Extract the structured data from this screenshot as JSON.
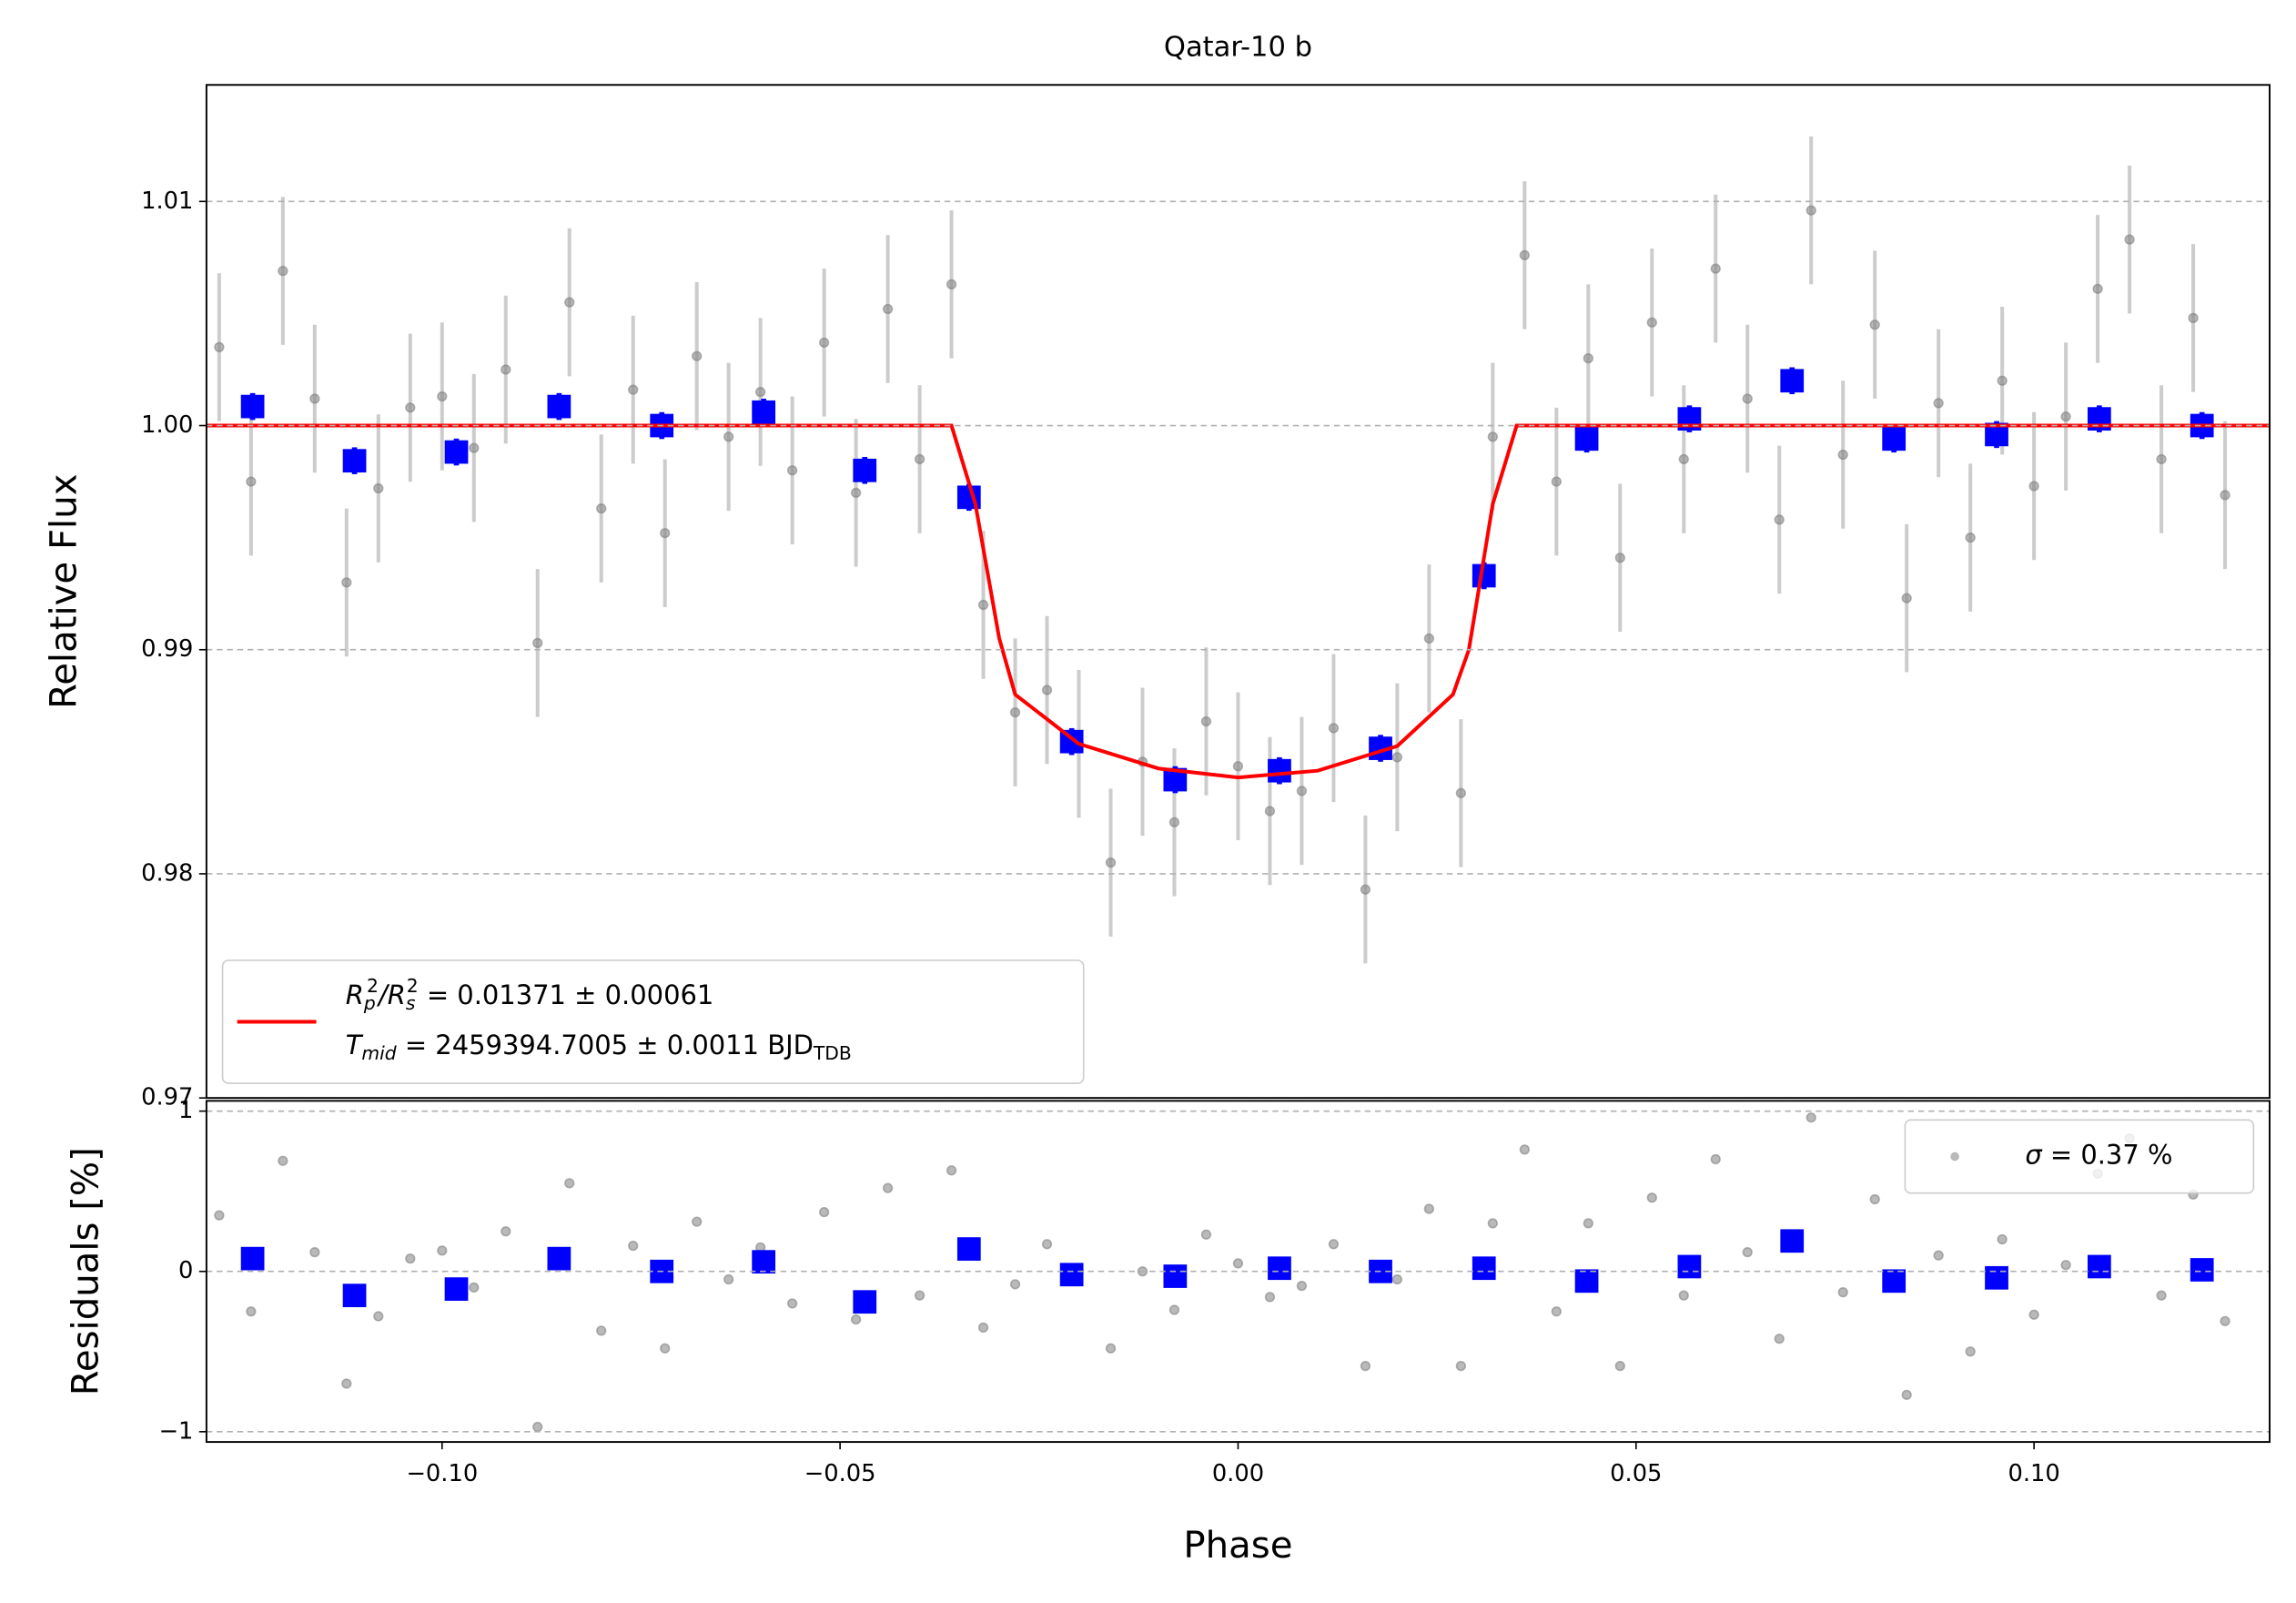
{
  "chart_data": [
    {
      "type": "scatter",
      "title": "Qatar-10 b",
      "ylabel": "Relative Flux",
      "xlim": [
        -0.1296,
        0.1296
      ],
      "ylim": [
        0.97,
        1.0152
      ],
      "yticks": [
        1.01,
        {
          "value": 1,
          "label": "1.00"
        },
        0.99,
        0.98,
        0.97
      ],
      "grid": true,
      "legend": "lower left",
      "series": [
        {
          "mode": "errorbar",
          "marker": "circle",
          "color": "#808080",
          "error_color": "#cccccc",
          "error": 0.0033,
          "x": [
            -0.128,
            -0.124,
            -0.12,
            -0.116,
            -0.112,
            -0.108,
            -0.104,
            -0.1,
            -0.096,
            -0.092,
            -0.088,
            -0.084,
            -0.08,
            -0.076,
            -0.072,
            -0.068,
            -0.064,
            -0.06,
            -0.056,
            -0.052,
            -0.048,
            -0.044,
            -0.04,
            -0.036,
            -0.032,
            -0.028,
            -0.024,
            -0.02,
            -0.016,
            -0.012,
            -0.008,
            -0.004,
            0,
            0.004,
            0.008,
            0.012,
            0.016,
            0.02,
            0.024,
            0.028,
            0.032,
            0.036,
            0.04,
            0.044,
            0.048,
            0.052,
            0.056,
            0.06,
            0.064,
            0.068,
            0.072,
            0.076,
            0.08,
            0.084,
            0.088,
            0.092,
            0.096,
            0.1,
            0.104,
            0.108,
            0.112,
            0.116,
            0.12,
            0.124
          ],
          "values": [
            1.0035,
            0.9975,
            1.0069,
            1.0012,
            0.993,
            0.9972,
            1.0008,
            1.0013,
            0.999,
            1.0025,
            0.9903,
            1.0055,
            0.9963,
            1.0016,
            0.9952,
            1.0031,
            0.9995,
            1.0015,
            0.998,
            1.0037,
            0.997,
            1.0052,
            0.9985,
            1.0063,
            0.992,
            0.9872,
            0.9882,
            0.9858,
            0.9805,
            0.985,
            0.9823,
            0.9868,
            0.9848,
            0.9828,
            0.9837,
            0.9865,
            0.9793,
            0.9852,
            0.9905,
            0.9836,
            0.9995,
            1.0076,
            0.9975,
            1.003,
            0.9941,
            1.0046,
            0.9985,
            1.007,
            1.0012,
            0.9958,
            1.0096,
            0.9987,
            1.0045,
            0.9923,
            1.001,
            0.995,
            1.002,
            0.9973,
            1.0004,
            1.0061,
            1.0083,
            0.9985,
            1.0048,
            0.9969
          ]
        },
        {
          "mode": "errorbar",
          "marker": "square",
          "color": "#0000ff",
          "error_color": "#0000ff",
          "error": 0.0006,
          "x": [
            -0.1238,
            -0.111,
            -0.0982,
            -0.0853,
            -0.0724,
            -0.0596,
            -0.0469,
            -0.0338,
            -0.0209,
            -0.0079,
            0.0052,
            0.0179,
            0.0309,
            0.0438,
            0.0567,
            0.0696,
            0.0824,
            0.0953,
            0.1082,
            0.1211
          ],
          "values": [
            1.00085,
            0.99843,
            0.99882,
            1.00085,
            1.0,
            1.0006,
            0.998,
            0.9968,
            0.9859,
            0.9842,
            0.9846,
            0.9856,
            0.9933,
            0.9994,
            1.0003,
            1.002,
            0.9994,
            0.9996,
            1.0003,
            1.0
          ]
        },
        {
          "mode": "line",
          "color": "#ff0000",
          "name": [
            [
              {
                "text": "R",
                "style": "i"
              },
              {
                "text": "p",
                "style": "sub"
              },
              {
                "text": "2",
                "style": "sup"
              },
              {
                "text": "/",
                "style": "i"
              },
              {
                "text": "R",
                "style": "i"
              },
              {
                "text": "s",
                "style": "sub"
              },
              {
                "text": "2",
                "style": "sup"
              },
              {
                "text": " = 0.01371 ± 0.00061",
                "style": "n"
              }
            ],
            [
              {
                "text": "T",
                "style": "i"
              },
              {
                "text": "mid",
                "style": "sub"
              },
              {
                "text": " = 2459394.7005 ± 0.0011 BJD",
                "style": "n"
              },
              {
                "text": "TDB",
                "style": "sub"
              }
            ]
          ],
          "x": [
            -0.1296,
            -0.036,
            -0.033,
            -0.03,
            -0.028,
            -0.02,
            -0.01,
            0,
            0.01,
            0.02,
            0.027,
            0.029,
            0.032,
            0.035,
            0.1296
          ],
          "values": [
            1,
            1,
            0.9965,
            0.9905,
            0.988,
            0.9858,
            0.9847,
            0.9843,
            0.9846,
            0.9857,
            0.988,
            0.99,
            0.9965,
            1,
            1
          ]
        }
      ]
    },
    {
      "type": "scatter",
      "ylabel": "Residuals [%]",
      "xlabel": "Phase",
      "xlim": [
        -0.1296,
        0.1296
      ],
      "ylim": [
        -1.064,
        1.064
      ],
      "xticks": [
        {
          "value": -0.1,
          "label": "−0.10"
        },
        {
          "value": -0.05,
          "label": "−0.05"
        },
        {
          "value": 0,
          "label": "0.00"
        },
        {
          "value": 0.05,
          "label": "0.05"
        },
        {
          "value": 0.1,
          "label": "0.10"
        }
      ],
      "yticks": [
        {
          "value": -1,
          "label": "−1"
        },
        0,
        1
      ],
      "grid": true,
      "legend": "upper right",
      "series": [
        {
          "mode": "points",
          "marker": "circle",
          "color": "#808080",
          "name": [
            [
              {
                "text": "σ",
                "style": "i"
              },
              {
                "text": " = 0.37 %",
                "style": "n"
              }
            ]
          ],
          "x": [
            -0.128,
            -0.124,
            -0.12,
            -0.116,
            -0.112,
            -0.108,
            -0.104,
            -0.1,
            -0.096,
            -0.092,
            -0.088,
            -0.084,
            -0.08,
            -0.076,
            -0.072,
            -0.068,
            -0.064,
            -0.06,
            -0.056,
            -0.052,
            -0.048,
            -0.044,
            -0.04,
            -0.036,
            -0.032,
            -0.028,
            -0.024,
            -0.02,
            -0.016,
            -0.012,
            -0.008,
            -0.004,
            0,
            0.004,
            0.008,
            0.012,
            0.016,
            0.02,
            0.024,
            0.028,
            0.032,
            0.036,
            0.04,
            0.044,
            0.048,
            0.052,
            0.056,
            0.06,
            0.064,
            0.068,
            0.072,
            0.076,
            0.08,
            0.084,
            0.088,
            0.092,
            0.096,
            0.1,
            0.104,
            0.108,
            0.112,
            0.116,
            0.12,
            0.124
          ],
          "values": [
            0.35,
            -0.25,
            0.69,
            0.12,
            -0.7,
            -0.28,
            0.08,
            0.13,
            -0.1,
            0.25,
            -0.97,
            0.55,
            -0.37,
            0.16,
            -0.48,
            0.31,
            -0.05,
            0.15,
            -0.2,
            0.37,
            -0.3,
            0.52,
            -0.15,
            0.63,
            -0.35,
            -0.08,
            0.17,
            0.0,
            -0.48,
            0.0,
            -0.24,
            0.23,
            0.05,
            -0.16,
            -0.09,
            0.17,
            -0.59,
            -0.05,
            0.39,
            -0.59,
            0.3,
            0.76,
            -0.25,
            0.3,
            -0.59,
            0.46,
            -0.15,
            0.7,
            0.12,
            -0.42,
            0.96,
            -0.13,
            0.45,
            -0.77,
            0.1,
            -0.5,
            0.2,
            -0.27,
            0.04,
            0.61,
            0.83,
            -0.15,
            0.48,
            -0.31
          ]
        },
        {
          "mode": "points",
          "marker": "square",
          "color": "#0000ff",
          "x": [
            -0.1238,
            -0.111,
            -0.0982,
            -0.0853,
            -0.0724,
            -0.0596,
            -0.0469,
            -0.0338,
            -0.0209,
            -0.0079,
            0.0052,
            0.0179,
            0.0309,
            0.0438,
            0.0567,
            0.0696,
            0.0824,
            0.0953,
            0.1082,
            0.1211
          ],
          "values": [
            0.08,
            -0.15,
            -0.11,
            0.08,
            0.0,
            0.06,
            -0.19,
            0.14,
            -0.02,
            -0.03,
            0.02,
            0.0,
            0.02,
            -0.06,
            0.03,
            0.19,
            -0.06,
            -0.04,
            0.03,
            0.01
          ]
        }
      ]
    }
  ]
}
